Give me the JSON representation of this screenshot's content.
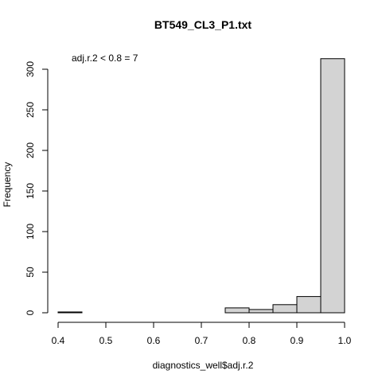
{
  "chart_data": {
    "type": "bar",
    "title": "BT549_CL3_P1.txt",
    "xlabel": "diagnostics_well$adj.r.2",
    "ylabel": "Frequency",
    "xlim": [
      0.4,
      1.0
    ],
    "ylim": [
      0,
      315
    ],
    "x_ticks": [
      "0.4",
      "0.5",
      "0.6",
      "0.7",
      "0.8",
      "0.9",
      "1.0"
    ],
    "y_ticks": [
      "0",
      "50",
      "100",
      "150",
      "200",
      "250",
      "300"
    ],
    "bins": [
      {
        "start": 0.4,
        "end": 0.45,
        "count": 1
      },
      {
        "start": 0.45,
        "end": 0.5,
        "count": 0
      },
      {
        "start": 0.5,
        "end": 0.55,
        "count": 0
      },
      {
        "start": 0.55,
        "end": 0.6,
        "count": 0
      },
      {
        "start": 0.6,
        "end": 0.65,
        "count": 0
      },
      {
        "start": 0.65,
        "end": 0.7,
        "count": 0
      },
      {
        "start": 0.7,
        "end": 0.75,
        "count": 0
      },
      {
        "start": 0.75,
        "end": 0.8,
        "count": 6
      },
      {
        "start": 0.8,
        "end": 0.85,
        "count": 4
      },
      {
        "start": 0.85,
        "end": 0.9,
        "count": 10
      },
      {
        "start": 0.9,
        "end": 0.95,
        "count": 20
      },
      {
        "start": 0.95,
        "end": 1.0,
        "count": 313
      }
    ],
    "annotation": "adj.r.2 < 0.8 = 7",
    "bar_fill": "#d3d3d3",
    "bar_stroke": "#000000",
    "grid": false,
    "legend": "none"
  }
}
